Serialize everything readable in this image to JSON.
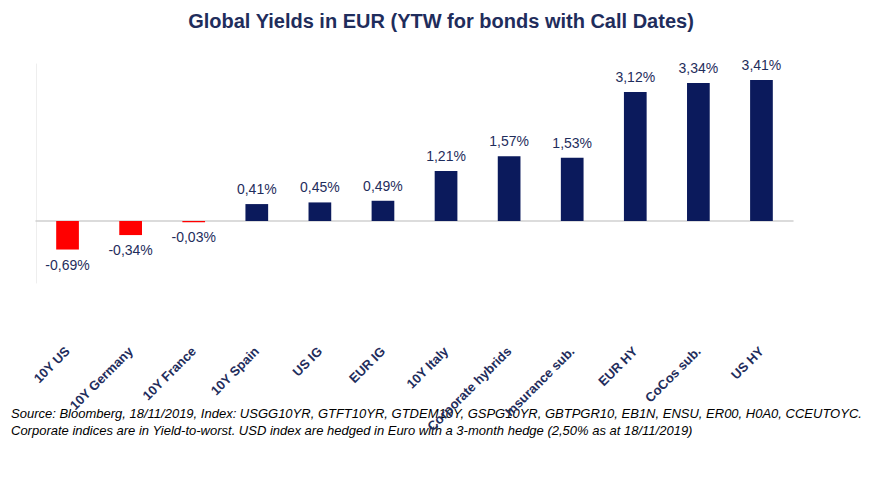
{
  "chart_data": {
    "type": "bar",
    "title": "Global Yields in EUR (YTW for bonds with Call Dates)",
    "annotations": [
      "Source: Bloomberg, 18/11/2019, Index: USGG10YR, GTFT10YR, GTDEM10Y, GSPG10YR, GBTPGR10, EB1N, ENSU, ER00, H0A0, CCEUTOYC. Corporate indices are in Yield-to-worst. USD index are hedged in Euro with a 3-month hedge (2,50% as at 18/11/2019)"
    ],
    "categories": [
      "10Y US",
      "10Y Germany",
      "10Y France",
      "10Y Spain",
      "US IG",
      "EUR IG",
      "10Y Italy",
      "Corporate hybrids",
      "Insurance sub.",
      "EUR HY",
      "CoCos sub.",
      "US HY"
    ],
    "values": [
      -0.69,
      -0.34,
      -0.03,
      0.41,
      0.45,
      0.49,
      1.21,
      1.57,
      1.53,
      3.12,
      3.34,
      3.41
    ],
    "value_labels": [
      "-0,69%",
      "-0,34%",
      "-0,03%",
      "0,41%",
      "0,45%",
      "0,49%",
      "1,21%",
      "1,57%",
      "1,53%",
      "3,12%",
      "3,34%",
      "3,41%"
    ],
    "colors": [
      "#ff0000",
      "#ff0000",
      "#ff0000",
      "#0b1a5c",
      "#0b1a5c",
      "#0b1a5c",
      "#0b1a5c",
      "#0b1a5c",
      "#0b1a5c",
      "#0b1a5c",
      "#0b1a5c",
      "#0b1a5c"
    ],
    "ylim": [
      -1.5,
      3.8
    ],
    "grid": false,
    "data_labels": true,
    "tick_labels": "x"
  }
}
